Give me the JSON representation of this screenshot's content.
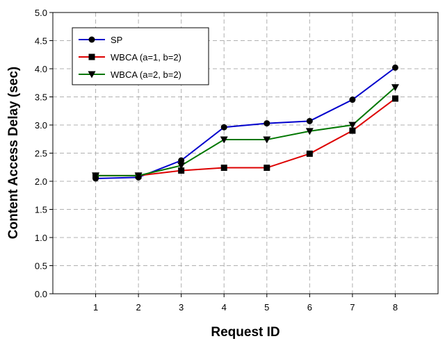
{
  "chart_data": {
    "type": "line",
    "xlabel": "Request ID",
    "ylabel": "Content Access Delay (sec)",
    "x": [
      1,
      2,
      3,
      4,
      5,
      6,
      7,
      8
    ],
    "xlim": [
      0,
      9
    ],
    "ylim": [
      0,
      5
    ],
    "xticks": [
      "1",
      "2",
      "3",
      "4",
      "5",
      "6",
      "7",
      "8"
    ],
    "yticks": [
      "0.0",
      "0.5",
      "1.0",
      "1.5",
      "2.0",
      "2.5",
      "3.0",
      "3.5",
      "4.0",
      "4.5",
      "5.0"
    ],
    "grid": true,
    "legend_position": "top-left",
    "series": [
      {
        "name": "SP",
        "values": [
          2.05,
          2.07,
          2.37,
          2.96,
          3.03,
          3.07,
          3.45,
          4.02
        ],
        "color": "#0000cc",
        "marker": "circle"
      },
      {
        "name": "WBCA (a=1, b=2)",
        "values": [
          2.1,
          2.1,
          2.19,
          2.24,
          2.24,
          2.49,
          2.9,
          3.47
        ],
        "color": "#dd0000",
        "marker": "square"
      },
      {
        "name": "WBCA (a=2, b=2)",
        "values": [
          2.1,
          2.1,
          2.28,
          2.74,
          2.74,
          2.89,
          3.0,
          3.67
        ],
        "color": "#007700",
        "marker": "triangle-down"
      }
    ]
  }
}
